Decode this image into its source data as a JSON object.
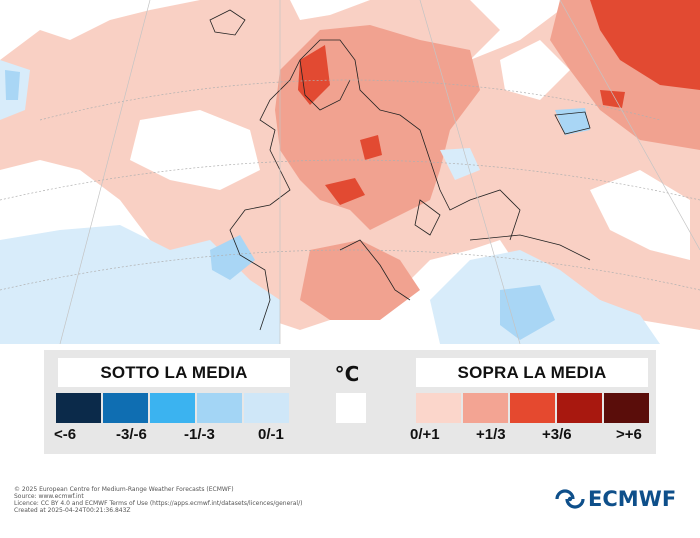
{
  "map": {
    "background_color": "#ffffff",
    "land_colors": {
      "plus_0_1": "#f9d0c4",
      "plus_1_3": "#f1a290",
      "plus_3_6": "#e24a32",
      "minus_0_1": "#d8ecfa",
      "minus_1_3": "#a9d6f5"
    }
  },
  "legend": {
    "below_title": "SOTTO LA MEDIA",
    "above_title": "SOPRA LA MEDIA",
    "unit": "°C",
    "below_swatches": [
      {
        "label": "<-6",
        "color": "#0b2a4a"
      },
      {
        "label": "-3/-6",
        "color": "#0f6eb2"
      },
      {
        "label": "-1/-3",
        "color": "#3bb3f0"
      },
      {
        "label": "0/-1",
        "color": "#cfe7f8"
      }
    ],
    "below_swatch_extra_color": "#a3d5f5",
    "neutral_color": "#ffffff",
    "above_swatches": [
      {
        "label": "0/+1",
        "color": "#fbd6cb"
      },
      {
        "label": "+1/3",
        "color": "#f3a493"
      },
      {
        "label": "+3/6",
        "color": "#e5492f"
      },
      {
        "label": ">+6",
        "color": "#5a0d0a"
      }
    ],
    "above_swatch_extra_color": "#a8180f"
  },
  "footer": {
    "lines": [
      "© 2025 European Centre for Medium-Range Weather Forecasts (ECMWF)",
      "Source: www.ecmwf.int",
      "Licence: CC BY 4.0 and ECMWF Terms of Use (https://apps.ecmwf.int/datasets/licences/general/)",
      "Created at 2025-04-24T00:21:36.843Z"
    ]
  },
  "logo": {
    "text": "ECMWF",
    "color": "#0e4f8a"
  }
}
